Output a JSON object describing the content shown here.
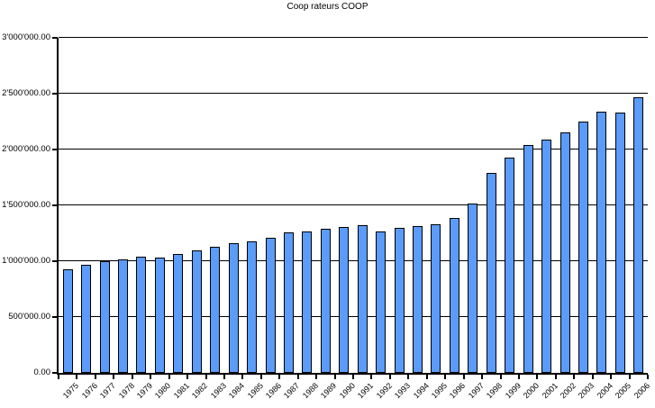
{
  "window": {
    "background_color": "#FFFFFF",
    "text_color": "#000000"
  },
  "chart_data": {
    "type": "bar",
    "title": "Coop rateurs COOP",
    "xlabel": "",
    "ylabel": "",
    "categories": [
      "1975",
      "1976",
      "1977",
      "1978",
      "1979",
      "1980",
      "1981",
      "1982",
      "1983",
      "1984",
      "1985",
      "1986",
      "1987",
      "1988",
      "1989",
      "1990",
      "1991",
      "1992",
      "1993",
      "1994",
      "1995",
      "1996",
      "1997",
      "1998",
      "1999",
      "2000",
      "2001",
      "2002",
      "2003",
      "2004",
      "2005",
      "2006"
    ],
    "values": [
      930000,
      965000,
      1000000,
      1020000,
      1040000,
      1035000,
      1065000,
      1095000,
      1125000,
      1165000,
      1175000,
      1210000,
      1255000,
      1265000,
      1290000,
      1305000,
      1320000,
      1270000,
      1300000,
      1315000,
      1330000,
      1385000,
      1520000,
      1790000,
      1930000,
      2040000,
      2090000,
      2155000,
      2250000,
      2340000,
      2330000,
      2470000
    ],
    "ylim": [
      0,
      3000000
    ],
    "ytick_step": 500000,
    "y_tick_labels": [
      "0.00",
      "500'000.00",
      "1'000'000.00",
      "1'500'000.00",
      "2'000'000.00",
      "2'500'000.00",
      "3'000'000.00"
    ],
    "grid": true,
    "legend": "none",
    "bar_color": "#5B9BFA",
    "bar_border_color": "#000000",
    "axis_color": "#000000"
  }
}
